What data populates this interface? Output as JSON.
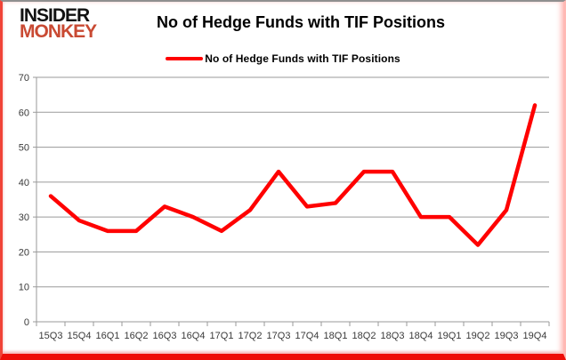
{
  "logo": {
    "line1": "INSIDER",
    "line2": "MONKEY"
  },
  "header": {
    "title": "No of Hedge Funds with TIF Positions"
  },
  "legend": {
    "label": "No of Hedge Funds with TIF Positions",
    "line_color": "#ff0000"
  },
  "colors": {
    "series_line": "#ff0000",
    "grid": "#9a9a9a",
    "axis_text": "#3a3a3a",
    "frame_border": "#ee0d07"
  },
  "chart_data": {
    "type": "line",
    "title": "No of Hedge Funds with TIF Positions",
    "xlabel": "",
    "ylabel": "",
    "categories": [
      "15Q3",
      "15Q4",
      "16Q1",
      "16Q2",
      "16Q3",
      "16Q4",
      "17Q1",
      "17Q2",
      "17Q3",
      "17Q4",
      "18Q1",
      "18Q2",
      "18Q3",
      "18Q4",
      "19Q1",
      "19Q2",
      "19Q3",
      "19Q4"
    ],
    "series": [
      {
        "name": "No of Hedge Funds with TIF Positions",
        "color": "#ff0000",
        "values": [
          36,
          29,
          26,
          26,
          33,
          30,
          26,
          32,
          43,
          33,
          34,
          43,
          43,
          30,
          30,
          22,
          32,
          62
        ]
      }
    ],
    "ylim": [
      0,
      70
    ],
    "ytick_step": 10,
    "grid": true,
    "legend_position": "top"
  }
}
